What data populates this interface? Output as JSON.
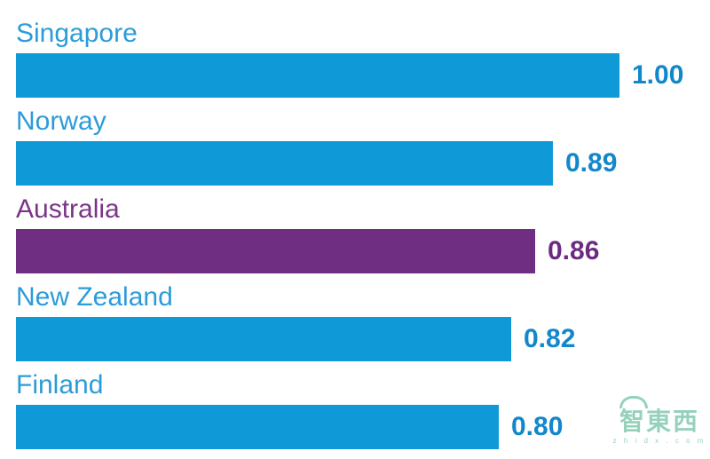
{
  "chart_data": {
    "type": "bar",
    "orientation": "horizontal",
    "categories": [
      "Singapore",
      "Norway",
      "Australia",
      "New Zealand",
      "Finland"
    ],
    "values": [
      1.0,
      0.89,
      0.86,
      0.82,
      0.8
    ],
    "value_labels": [
      "1.00",
      "0.89",
      "0.86",
      "0.82",
      "0.80"
    ],
    "xlim": [
      0,
      1
    ],
    "grid": false,
    "legend": false,
    "highlight_index": 2,
    "colors": {
      "bar_default": "#0f99d6",
      "bar_highlight": "#6f2e82",
      "label_default": "#2b9cd8",
      "label_highlight": "#7b3488",
      "value_default": "#1287cb",
      "value_highlight": "#6b2c80"
    }
  },
  "watermark": {
    "text": "智東西",
    "subtext": "z h i d x . c o m",
    "color": "#3fae87"
  }
}
